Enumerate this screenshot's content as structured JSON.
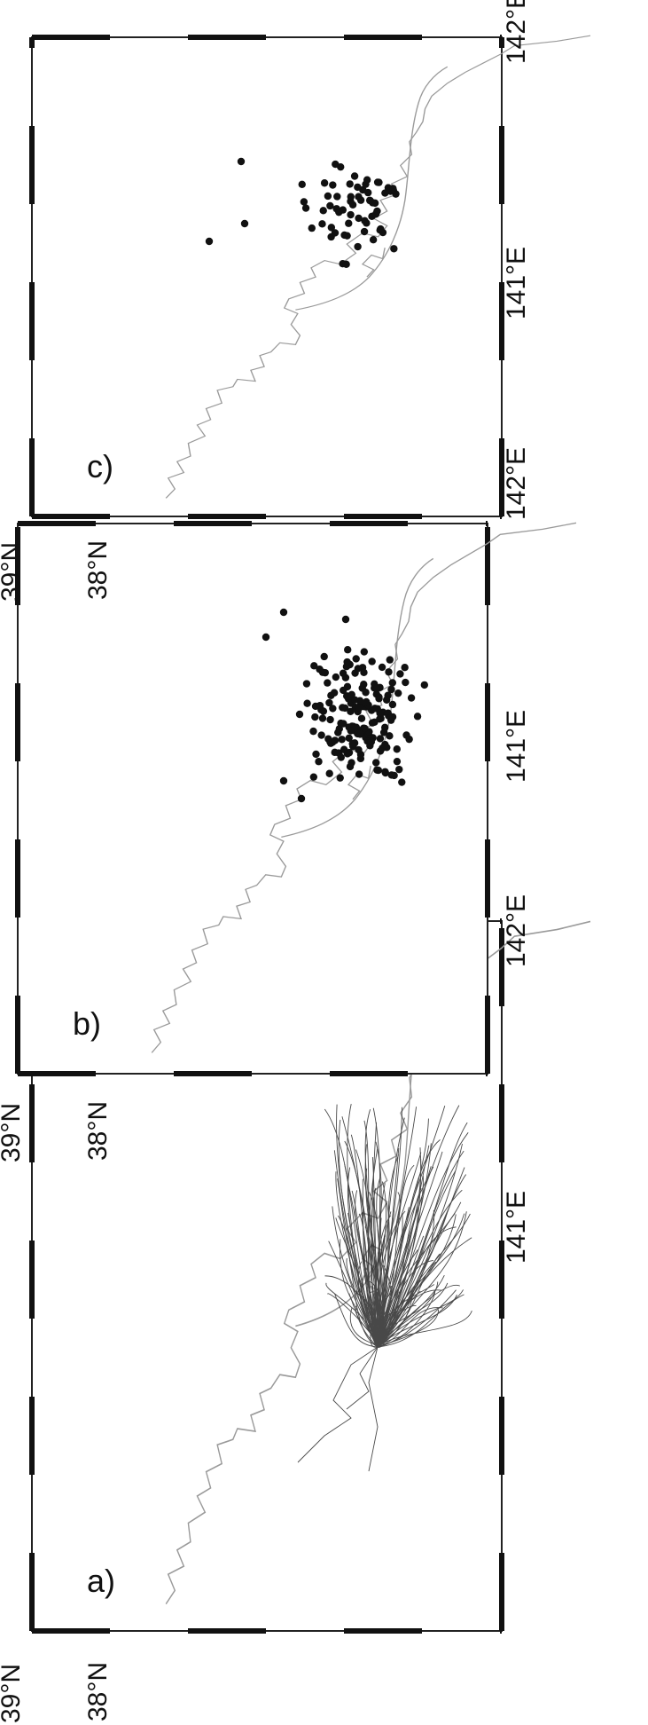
{
  "figure": {
    "orientation": "rotated 90° counter-clockwise",
    "panels": [
      {
        "id": "a",
        "label": "a)",
        "layer": "tracks",
        "lat_ticks": [
          "39°N",
          "38°N"
        ],
        "lon_ticks": [
          "141°E",
          "142°E"
        ]
      },
      {
        "id": "b",
        "label": "b)",
        "layer": "points",
        "lat_ticks": [
          "39°N",
          "38°N"
        ],
        "lon_ticks": [
          "141°E",
          "142°E"
        ]
      },
      {
        "id": "c",
        "label": "c)",
        "layer": "points",
        "lat_ticks": [
          "39°N",
          "38°N"
        ],
        "lon_ticks": [
          "141°E",
          "142°E"
        ]
      }
    ]
  },
  "style": {
    "frame_color": "#222222",
    "coast_color": "#9a9a9a",
    "track_color": "#2a2a2a",
    "point_color": "#111111"
  }
}
